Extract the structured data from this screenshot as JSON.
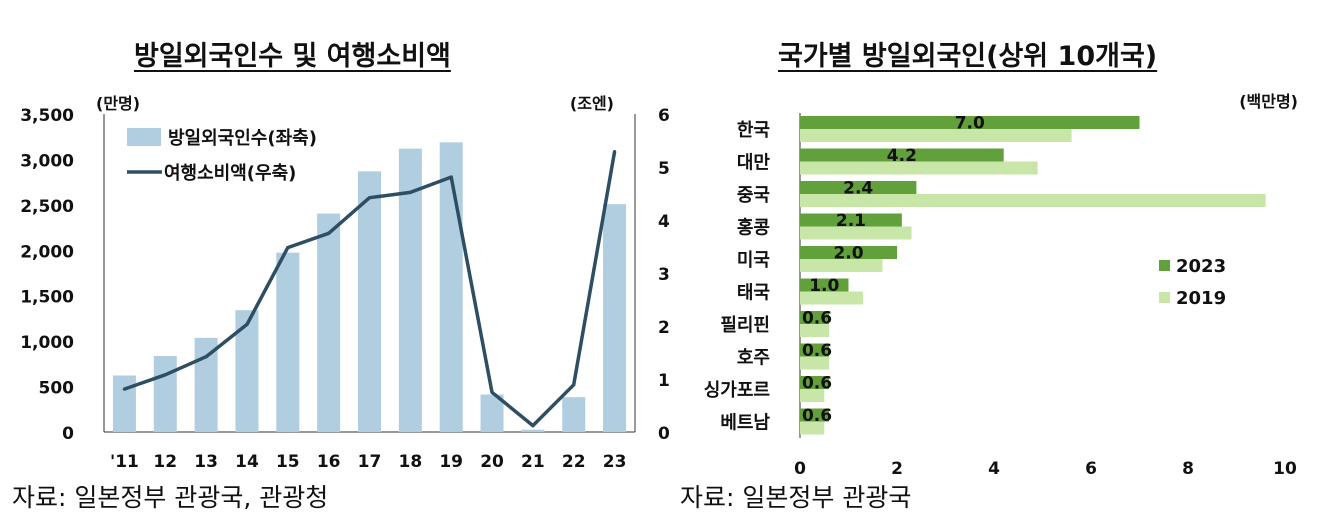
{
  "left": {
    "title": "방일외국인수 및 여행소비액",
    "left_unit": "(만명)",
    "right_unit": "(조엔)",
    "source": "자료: 일본정부 관광국, 관광청"
  },
  "right": {
    "title": "국가별 방일외국인(상위 10개국)",
    "unit": "(백만명)",
    "source": "자료: 일본정부 관광국"
  },
  "colors": {
    "bar": "#b1cde0",
    "line": "#2e4e63",
    "series_2023": "#62a03c",
    "series_2019": "#c7e6a8"
  },
  "chart_data": [
    {
      "type": "bar+line",
      "title": "방일외국인수 및 여행소비액",
      "categories": [
        "'11",
        "12",
        "13",
        "14",
        "15",
        "16",
        "17",
        "18",
        "19",
        "20",
        "21",
        "22",
        "23"
      ],
      "series": [
        {
          "name": "방일외국인수(좌축)",
          "type": "bar",
          "axis": "left",
          "values": [
            622,
            836,
            1036,
            1341,
            1974,
            2404,
            2869,
            3119,
            3188,
            412,
            25,
            383,
            2507
          ]
        },
        {
          "name": "여행소비액(우축)",
          "type": "line",
          "axis": "right",
          "values": [
            0.81,
            1.08,
            1.42,
            2.03,
            3.48,
            3.75,
            4.42,
            4.52,
            4.81,
            0.75,
            0.12,
            0.89,
            5.29
          ]
        }
      ],
      "y_left": {
        "unit": "(만명)",
        "ylim": [
          0,
          3500
        ],
        "ticks": [
          "0",
          "500",
          "1,000",
          "1,500",
          "2,000",
          "2,500",
          "3,000",
          "3,500"
        ]
      },
      "y_right": {
        "unit": "(조엔)",
        "ylim": [
          0,
          6
        ],
        "ticks": [
          "0",
          "1",
          "2",
          "3",
          "4",
          "5",
          "6"
        ]
      },
      "legend": "top-left",
      "grid": false
    },
    {
      "type": "bar",
      "orientation": "horizontal",
      "title": "국가별 방일외국인(상위 10개국)",
      "unit": "(백만명)",
      "categories": [
        "한국",
        "대만",
        "중국",
        "홍콩",
        "미국",
        "태국",
        "필리핀",
        "호주",
        "싱가포르",
        "베트남"
      ],
      "series": [
        {
          "name": "2023",
          "values": [
            7.0,
            4.2,
            2.4,
            2.1,
            2.0,
            1.0,
            0.6,
            0.6,
            0.6,
            0.6
          ]
        },
        {
          "name": "2019",
          "values": [
            5.6,
            4.9,
            9.6,
            2.3,
            1.7,
            1.3,
            0.6,
            0.6,
            0.5,
            0.5
          ]
        }
      ],
      "data_labels": [
        "7.0",
        "4.2",
        "2.4",
        "2.1",
        "2.0",
        "1.0",
        "0.6",
        "0.6",
        "0.6",
        "0.6"
      ],
      "xlim": [
        0,
        10
      ],
      "x_ticks": [
        "0",
        "2",
        "4",
        "6",
        "8",
        "10"
      ],
      "legend": "right",
      "grid": false
    }
  ]
}
